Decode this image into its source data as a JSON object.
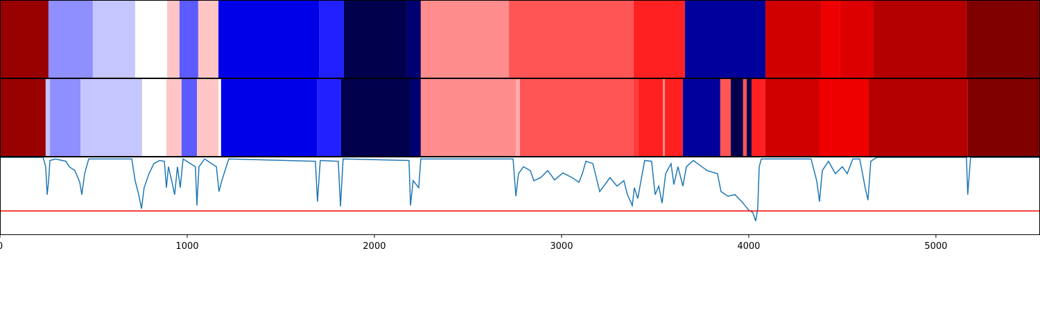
{
  "chart_data": [
    {
      "type": "segments",
      "xlim": [
        0,
        5556
      ],
      "edges": [
        0,
        259,
        496,
        722,
        893,
        959,
        1059,
        1167,
        1704,
        1837,
        2174,
        2248,
        2719,
        3385,
        3659,
        4089,
        4389,
        4489,
        4667,
        5163,
        5556
      ],
      "colors": [
        "#990000",
        "#8f8fff",
        "#c5c5ff",
        "#ffffff",
        "#ffc5c5",
        "#5b5bff",
        "#ffc5c5",
        "#0000e8",
        "#2121ff",
        "#00004d",
        "#000070",
        "#ff8d8d",
        "#ff5555",
        "#ff2121",
        "#00009b",
        "#d10000",
        "#ee0000",
        "#dd0000",
        "#b50000",
        "#800000"
      ]
    },
    {
      "type": "segments",
      "xlim": [
        0,
        5556
      ],
      "edges": [
        0,
        244,
        267,
        430,
        759,
        889,
        970,
        1052,
        1167,
        1181,
        1693,
        1822,
        2189,
        2248,
        2756,
        2778,
        3385,
        3411,
        3541,
        3552,
        3648,
        3848,
        3904,
        3970,
        3989,
        4015,
        4089,
        4378,
        4641,
        5170,
        5556
      ],
      "colors": [
        "#990000",
        "#c5c5ff",
        "#8f8fff",
        "#c5c5ff",
        "#ffffff",
        "#ffc5c5",
        "#5b5bff",
        "#ffc5c5",
        "#ffffff",
        "#0000e8",
        "#2121ff",
        "#00004d",
        "#000070",
        "#ff8d8d",
        "#ffaaaa",
        "#ff5555",
        "#ff3b3b",
        "#ff2121",
        "#ff8d8d",
        "#ff2121",
        "#00009b",
        "#ff5555",
        "#00004d",
        "#ff5555",
        "#00004d",
        "#ff2121",
        "#d10000",
        "#ee0000",
        "#b50000",
        "#800000"
      ]
    },
    {
      "type": "line",
      "xlim": [
        0,
        5556
      ],
      "ylim": [
        0,
        1
      ],
      "xticks": [
        0,
        1000,
        2000,
        3000,
        4000,
        5000
      ],
      "color": "#1f77b4",
      "hline": 0.31,
      "hline_color": "#ff0000",
      "x": [
        0,
        230,
        244,
        252,
        259,
        267,
        296,
        352,
        370,
        400,
        426,
        437,
        452,
        474,
        704,
        722,
        741,
        756,
        770,
        796,
        822,
        852,
        878,
        889,
        900,
        919,
        933,
        948,
        963,
        978,
        1044,
        1052,
        1063,
        1093,
        1156,
        1170,
        1185,
        1222,
        1685,
        1696,
        1711,
        1807,
        1819,
        1833,
        2185,
        2193,
        2207,
        2237,
        2248,
        2741,
        2756,
        2770,
        2796,
        2833,
        2852,
        2889,
        2926,
        2963,
        3007,
        3056,
        3093,
        3111,
        3130,
        3167,
        3204,
        3259,
        3296,
        3333,
        3352,
        3378,
        3389,
        3407,
        3444,
        3481,
        3500,
        3519,
        3537,
        3556,
        3585,
        3600,
        3622,
        3648,
        3667,
        3704,
        3778,
        3833,
        3852,
        3889,
        3926,
        3963,
        4000,
        4022,
        4037,
        4048,
        4056,
        4067,
        4333,
        4363,
        4378,
        4393,
        4426,
        4463,
        4500,
        4526,
        4556,
        4593,
        4622,
        4637,
        4652,
        4685,
        5163,
        5170,
        5185,
        5556
      ],
      "values": [
        1.0,
        1.0,
        0.88,
        0.52,
        0.68,
        0.96,
        0.98,
        0.95,
        0.88,
        0.83,
        0.68,
        0.52,
        0.79,
        0.98,
        0.98,
        0.7,
        0.52,
        0.34,
        0.61,
        0.79,
        0.92,
        0.96,
        0.95,
        0.61,
        0.88,
        0.68,
        0.52,
        0.88,
        0.61,
        0.98,
        0.88,
        0.38,
        0.88,
        0.98,
        0.88,
        0.56,
        0.7,
        0.98,
        0.95,
        0.43,
        0.96,
        0.95,
        0.37,
        0.98,
        0.96,
        0.38,
        0.7,
        0.61,
        0.98,
        0.98,
        0.5,
        0.79,
        0.88,
        0.83,
        0.7,
        0.74,
        0.83,
        0.71,
        0.8,
        0.74,
        0.68,
        0.79,
        0.95,
        0.92,
        0.56,
        0.74,
        0.63,
        0.7,
        0.52,
        0.38,
        0.61,
        0.47,
        0.96,
        0.95,
        0.52,
        0.63,
        0.41,
        0.79,
        0.92,
        0.65,
        0.88,
        0.63,
        0.88,
        0.96,
        0.83,
        0.79,
        0.56,
        0.5,
        0.52,
        0.43,
        0.32,
        0.29,
        0.18,
        0.34,
        0.88,
        0.98,
        0.98,
        0.7,
        0.43,
        0.83,
        0.95,
        0.79,
        0.88,
        0.79,
        0.98,
        0.98,
        0.61,
        0.45,
        0.95,
        1.0,
        1.0,
        0.52,
        1.0,
        1.0
      ]
    }
  ]
}
